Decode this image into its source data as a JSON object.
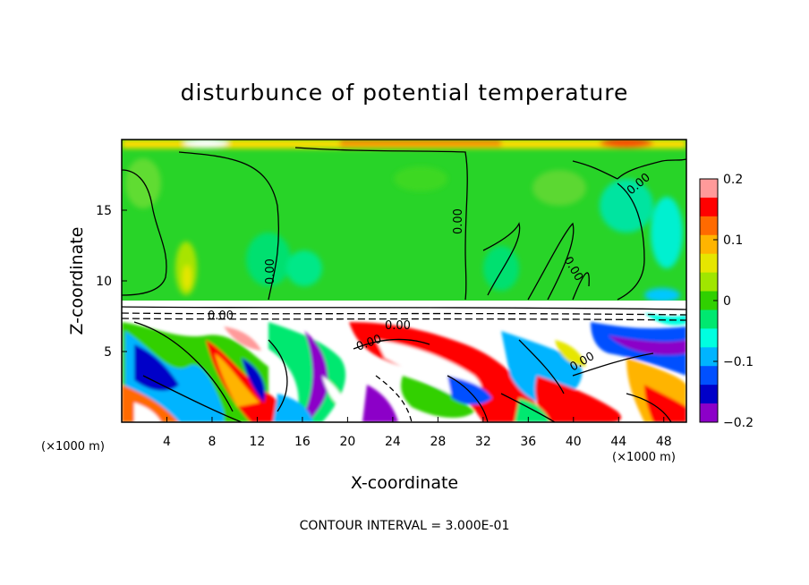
{
  "chart_data": {
    "type": "heatmap",
    "title": "disturbunce of potential temperature",
    "xlabel": "X-coordinate",
    "ylabel": "Z-coordinate",
    "x_unit_label": "(×1000 m)",
    "y_unit_label": "(×1000 m)",
    "xlim": [
      0,
      50
    ],
    "ylim": [
      0,
      20
    ],
    "x_ticks": [
      4,
      8,
      12,
      16,
      20,
      24,
      28,
      32,
      36,
      40,
      44,
      48
    ],
    "y_ticks": [
      5,
      10,
      15
    ],
    "colorbar": {
      "range": [
        -0.2,
        0.2
      ],
      "tick_labels": [
        "0.2",
        "0.1",
        "0",
        "−0.1",
        "−0.2"
      ],
      "tick_values": [
        0.2,
        0.1,
        0,
        -0.1,
        -0.2
      ],
      "colors": [
        "#ff9a9a",
        "#ff0000",
        "#ff6a00",
        "#ffb400",
        "#e6e600",
        "#a0e600",
        "#30d000",
        "#00e870",
        "#00ffe0",
        "#00b4ff",
        "#0050ff",
        "#0000c8",
        "#8c00c8"
      ]
    },
    "contour_labels": [
      "0.00",
      "0.00",
      "0.00",
      "0.00",
      "0.00",
      "0.00",
      "0.00",
      "0.00"
    ],
    "note": "CONTOUR INTERVAL = 3.000E-01"
  }
}
